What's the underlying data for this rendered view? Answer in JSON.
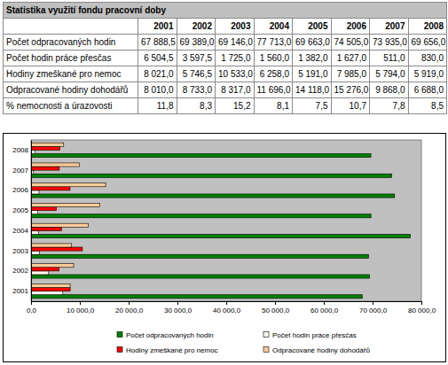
{
  "table": {
    "title": "Statistika využití fondu pracovní doby",
    "columns": [
      "2001",
      "2002",
      "2003",
      "2004",
      "2005",
      "2006",
      "2007",
      "2008"
    ],
    "rows": [
      {
        "label": "Počet odpracovaných hodin",
        "cells": [
          "67 888,5",
          "69 389,0",
          "69 146,0",
          "77 713,0",
          "69 663,0",
          "74 505,0",
          "73 935,0",
          "69 656,0"
        ]
      },
      {
        "label": "Počet hodin práce přesčas",
        "cells": [
          "6 504,5",
          "3 597,5",
          "1 725,0",
          "1 560,0",
          "1 382,0",
          "1 627,0",
          "511,0",
          "830,0"
        ]
      },
      {
        "label": "Hodiny zmeškané pro nemoc",
        "cells": [
          "8 021,0",
          "5 746,5",
          "10 533,0",
          "6 258,0",
          "5 191,0",
          "7 985,0",
          "5 794,0",
          "5 919,0"
        ]
      },
      {
        "label": "Odpracované hodiny dohodářů",
        "cells": [
          "8 010,0",
          "8 733,0",
          "8 317,0",
          "11 696,0",
          "14 118,0",
          "15 276,0",
          "9 868,0",
          "6 688,0"
        ]
      },
      {
        "label": "% nemocnosti a úrazovosti",
        "cells": [
          "11,8",
          "8,3",
          "15,2",
          "8,1",
          "7,5",
          "10,7",
          "7,8",
          "8,5"
        ]
      }
    ]
  },
  "chart_data": {
    "type": "bar",
    "orientation": "horizontal",
    "grid": false,
    "legend": "bottom",
    "categories": [
      "2001",
      "2002",
      "2003",
      "2004",
      "2005",
      "2006",
      "2007",
      "2008"
    ],
    "series": [
      {
        "name": "Počet odpracovaných hodin",
        "color": "#008000",
        "values": [
          67888.5,
          69389.0,
          69146.0,
          77713.0,
          69663.0,
          74505.0,
          73935.0,
          69656.0
        ]
      },
      {
        "name": "Počet hodin práce přesčas",
        "color": "#fff8f0",
        "values": [
          6504.5,
          3597.5,
          1725.0,
          1560.0,
          1382.0,
          1627.0,
          511.0,
          830.0
        ]
      },
      {
        "name": "Hodiny zmeškané pro nemoc",
        "color": "#ff0000",
        "values": [
          8021.0,
          5746.5,
          10533.0,
          6258.0,
          5191.0,
          7985.0,
          5794.0,
          5919.0
        ]
      },
      {
        "name": "Odpracované hodiny dohodářů",
        "color": "#ffcc99",
        "values": [
          8010.0,
          8733.0,
          8317.0,
          11696.0,
          14118.0,
          15276.0,
          9868.0,
          6688.0
        ]
      }
    ],
    "xlim": [
      0,
      80000
    ],
    "xticks": [
      {
        "value": 0,
        "label": "0,0"
      },
      {
        "value": 10000,
        "label": "10 000,0"
      },
      {
        "value": 20000,
        "label": "20 000,0"
      },
      {
        "value": 30000,
        "label": "30 000,0"
      },
      {
        "value": 40000,
        "label": "40 000,0"
      },
      {
        "value": 50000,
        "label": "50 000,0"
      },
      {
        "value": 60000,
        "label": "60 000,0"
      },
      {
        "value": 70000,
        "label": "70 000,0"
      },
      {
        "value": 80000,
        "label": "80 000,0"
      }
    ]
  }
}
